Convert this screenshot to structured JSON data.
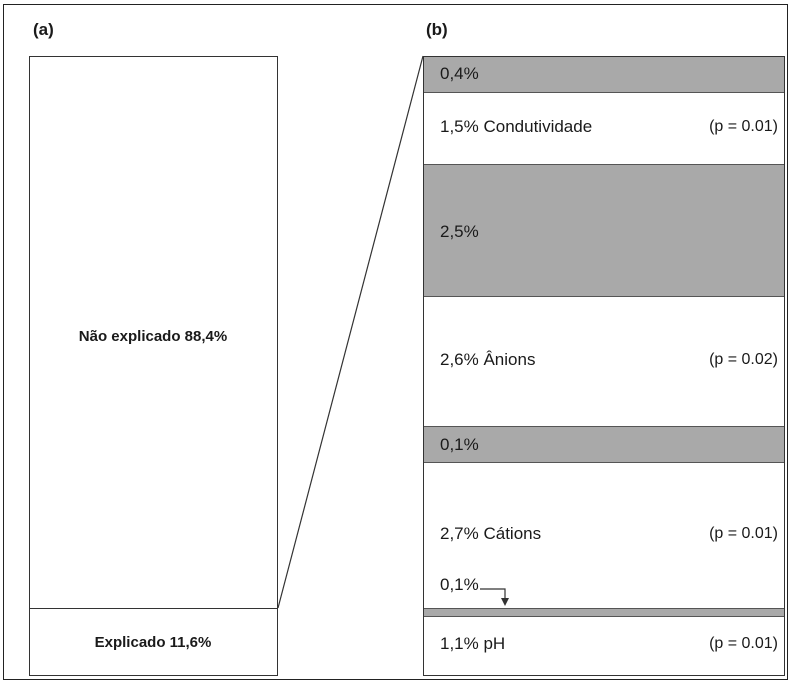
{
  "panel_labels": {
    "a": "(a)",
    "b": "(b)"
  },
  "chart_data": [
    {
      "type": "stacked-bar",
      "panel": "(a)",
      "segments": [
        {
          "label": "Não explicado 88,4%",
          "value": 88.4
        },
        {
          "label": "Explicado 11,6%",
          "value": 11.6
        }
      ]
    },
    {
      "type": "stacked-bar",
      "panel": "(b)",
      "segments": [
        {
          "label": "0,4%",
          "value": 0.4,
          "fill": "gray"
        },
        {
          "label": "1,5% Condutividade",
          "value": 1.5,
          "p": "(p = 0.01)",
          "fill": "white"
        },
        {
          "label": "2,5%",
          "value": 2.5,
          "fill": "gray"
        },
        {
          "label": "2,6% Ânions",
          "value": 2.6,
          "p": "(p = 0.02)",
          "fill": "white"
        },
        {
          "label": "0,1%",
          "value": 0.1,
          "fill": "gray"
        },
        {
          "label": "2,7% Cátions",
          "value": 2.7,
          "p": "(p = 0.01)",
          "fill": "white"
        },
        {
          "label": "0,1%",
          "value": 0.1,
          "fill": "gray"
        },
        {
          "label": "1,1% pH",
          "value": 1.1,
          "p": "(p = 0.01)",
          "fill": "white"
        }
      ]
    }
  ],
  "colors": {
    "gray": "#a9a9a9",
    "white": "#ffffff",
    "line": "#333333"
  }
}
